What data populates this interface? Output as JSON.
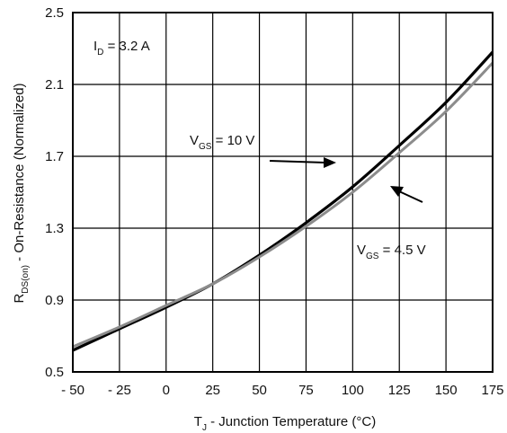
{
  "chart_data": {
    "type": "line",
    "title": "",
    "xlabel": {
      "main": "T",
      "sub": "J",
      "rest": " - Junction Temperature (°C)"
    },
    "ylabel": {
      "main": "R",
      "sub": "DS(on)",
      "rest": " - On-Resistance (Normalized)"
    },
    "xlim": [
      -50,
      175
    ],
    "ylim": [
      0.5,
      2.5
    ],
    "x_ticks": [
      -50,
      -25,
      0,
      25,
      50,
      75,
      100,
      125,
      150,
      175
    ],
    "x_tick_labels": [
      "- 50",
      "- 25",
      "0",
      "25",
      "50",
      "75",
      "100",
      "125",
      "150",
      "175"
    ],
    "y_ticks": [
      0.5,
      0.9,
      1.3,
      1.7,
      2.1,
      2.5
    ],
    "y_tick_labels": [
      "0.5",
      "0.9",
      "1.3",
      "1.7",
      "2.1",
      "2.5"
    ],
    "grid": true,
    "x": [
      -50,
      -25,
      0,
      25,
      50,
      75,
      100,
      125,
      150,
      175
    ],
    "series": [
      {
        "name": "VGS = 10 V",
        "label": {
          "main": "V",
          "sub": "GS",
          "rest": " = 10 V"
        },
        "color": "#000000",
        "values": [
          0.62,
          0.74,
          0.86,
          0.99,
          1.15,
          1.33,
          1.53,
          1.76,
          2.0,
          2.28
        ]
      },
      {
        "name": "VGS = 4.5 V",
        "label": {
          "main": "V",
          "sub": "GS",
          "rest": " = 4.5 V"
        },
        "color": "#8c8c8c",
        "values": [
          0.64,
          0.75,
          0.87,
          0.99,
          1.14,
          1.31,
          1.5,
          1.72,
          1.95,
          2.22
        ]
      }
    ],
    "annotations": [
      {
        "main": "I",
        "sub": "D",
        "rest": " = 3.2 A"
      }
    ]
  }
}
